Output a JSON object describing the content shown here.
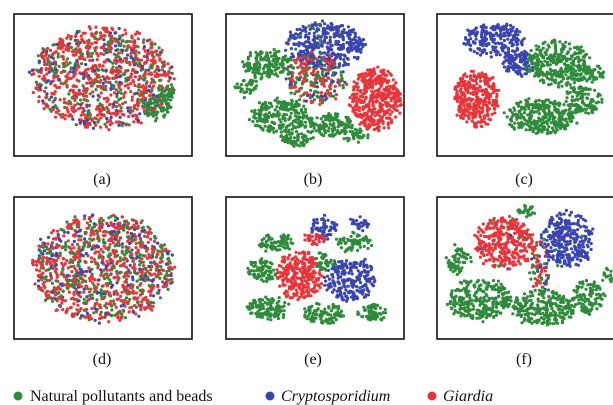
{
  "figure": {
    "panel_labels": [
      "(a)",
      "(b)",
      "(c)",
      "(d)",
      "(e)",
      "(f)"
    ]
  },
  "legend": {
    "items": [
      {
        "label": "Natural pollutants and beads",
        "color": "#2e8b3a",
        "italic": false
      },
      {
        "label": "Cryptosporidium",
        "color": "#3a45b0",
        "italic": true
      },
      {
        "label": "Giardia",
        "color": "#e8353a",
        "italic": false
      }
    ]
  },
  "chart_data": [
    {
      "type": "scatter",
      "panel": "(a)",
      "xlabel": "",
      "ylabel": "",
      "axes_ticks": "none",
      "series": [
        {
          "name": "Natural pollutants and beads",
          "color": "#2e8b3a"
        },
        {
          "name": "Cryptosporidium",
          "color": "#3a45b0"
        },
        {
          "name": "Giardia",
          "color": "#e8353a"
        }
      ],
      "clusters": [
        {
          "series": "Giardia",
          "shape": "one large round cloud",
          "mixed_with": [
            "Natural pollutants and beads",
            "Cryptosporidium"
          ]
        },
        {
          "series": "Natural pollutants and beads",
          "shape": "small cluster lower-right"
        }
      ]
    },
    {
      "type": "scatter",
      "panel": "(b)",
      "xlabel": "",
      "ylabel": "",
      "axes_ticks": "none",
      "clusters": [
        {
          "series": "Cryptosporidium",
          "position": "top-center"
        },
        {
          "series": "Giardia",
          "position": "right"
        },
        {
          "series": "Natural pollutants and beads",
          "position": "left and bottom islands"
        }
      ]
    },
    {
      "type": "scatter",
      "panel": "(c)",
      "xlabel": "",
      "ylabel": "",
      "axes_ticks": "none",
      "clusters": [
        {
          "series": "Cryptosporidium",
          "position": "top-left"
        },
        {
          "series": "Giardia",
          "position": "left"
        },
        {
          "series": "Natural pollutants and beads",
          "position": "center-right"
        }
      ]
    },
    {
      "type": "scatter",
      "panel": "(d)",
      "xlabel": "",
      "ylabel": "",
      "axes_ticks": "none",
      "clusters": [
        {
          "series": "Giardia",
          "shape": "one large round cloud",
          "mixed_with": [
            "Natural pollutants and beads",
            "Cryptosporidium"
          ]
        }
      ]
    },
    {
      "type": "scatter",
      "panel": "(e)",
      "xlabel": "",
      "ylabel": "",
      "axes_ticks": "none",
      "clusters": [
        {
          "series": "Giardia",
          "position": "center-left"
        },
        {
          "series": "Cryptosporidium",
          "position": "top and right"
        },
        {
          "series": "Natural pollutants and beads",
          "position": "surrounding islands"
        }
      ]
    },
    {
      "type": "scatter",
      "panel": "(f)",
      "xlabel": "",
      "ylabel": "",
      "axes_ticks": "none",
      "clusters": [
        {
          "series": "Giardia",
          "position": "top-left"
        },
        {
          "series": "Cryptosporidium",
          "position": "top-right"
        },
        {
          "series": "Natural pollutants and beads",
          "position": "bottom and left"
        }
      ]
    }
  ]
}
